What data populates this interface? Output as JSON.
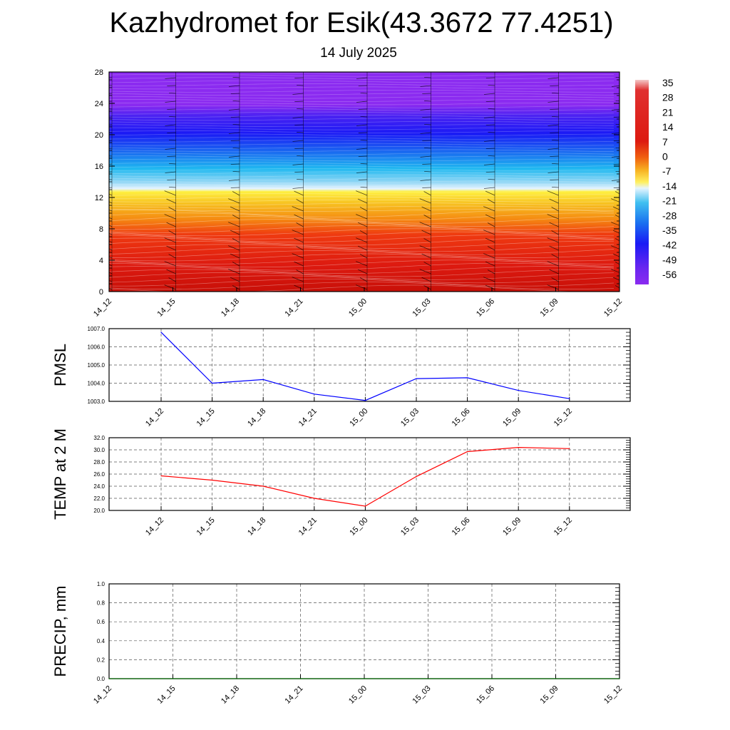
{
  "title": "Kazhydromet for Esik(43.3672 77.4251)",
  "subtitle": "14 July 2025",
  "chart_data": [
    {
      "type": "heatmap",
      "title": "",
      "xlabel": "",
      "ylabel": "",
      "x_ticks": [
        "14_12",
        "14_15",
        "14_18",
        "14_21",
        "15_00",
        "15_03",
        "15_06",
        "15_09",
        "15_12"
      ],
      "y_ticks": [
        "0",
        "4",
        "8",
        "12",
        "16",
        "20",
        "24",
        "28"
      ],
      "ylim": [
        0,
        28
      ],
      "colorbar_ticks": [
        "35",
        "28",
        "21",
        "14",
        "7",
        "0",
        "-7",
        "-14",
        "-21",
        "-28",
        "-35",
        "-42",
        "-49",
        "-56"
      ],
      "colors": {
        "purple": "#8b2bf0",
        "blue": "#1a1af5",
        "cyan": "#1fb8f0",
        "yellow": "#fff040",
        "orange": "#f59a12",
        "red": "#dd1a10"
      },
      "overlay": "wind-barbs"
    },
    {
      "type": "line",
      "ylabel": "PMSL",
      "x": [
        "14_12",
        "14_15",
        "14_18",
        "14_21",
        "15_00",
        "15_03",
        "15_06",
        "15_09",
        "15_12"
      ],
      "values": [
        1006.8,
        1004.0,
        1004.2,
        1003.4,
        1003.05,
        1004.25,
        1004.3,
        1003.6,
        1003.15
      ],
      "ylim": [
        1003.0,
        1007.0
      ],
      "y_ticks": [
        "1003.0",
        "1004.0",
        "1005.0",
        "1006.0",
        "1007.0"
      ],
      "color": "#0000ff",
      "grid": true
    },
    {
      "type": "line",
      "ylabel": "TEMP at 2 M",
      "x": [
        "14_12",
        "14_15",
        "14_18",
        "14_21",
        "15_00",
        "15_03",
        "15_06",
        "15_09",
        "15_12"
      ],
      "values": [
        25.7,
        25.0,
        24.0,
        22.0,
        20.7,
        25.6,
        29.7,
        30.4,
        30.2
      ],
      "ylim": [
        20.0,
        32.0
      ],
      "y_ticks": [
        "20.0",
        "22.0",
        "24.0",
        "26.0",
        "28.0",
        "30.0",
        "32.0"
      ],
      "color": "#ff0000",
      "grid": true
    },
    {
      "type": "line",
      "ylabel": "PRECIP, mm",
      "x": [
        "14_12",
        "14_15",
        "14_18",
        "14_21",
        "15_00",
        "15_03",
        "15_06",
        "15_09",
        "15_12"
      ],
      "values": [
        0,
        0,
        0,
        0,
        0,
        0,
        0,
        0,
        0
      ],
      "ylim": [
        0.0,
        1.0
      ],
      "y_ticks": [
        "0.0",
        "0.2",
        "0.4",
        "0.6",
        "0.8",
        "1.0"
      ],
      "color": "#006400",
      "grid": true
    }
  ]
}
